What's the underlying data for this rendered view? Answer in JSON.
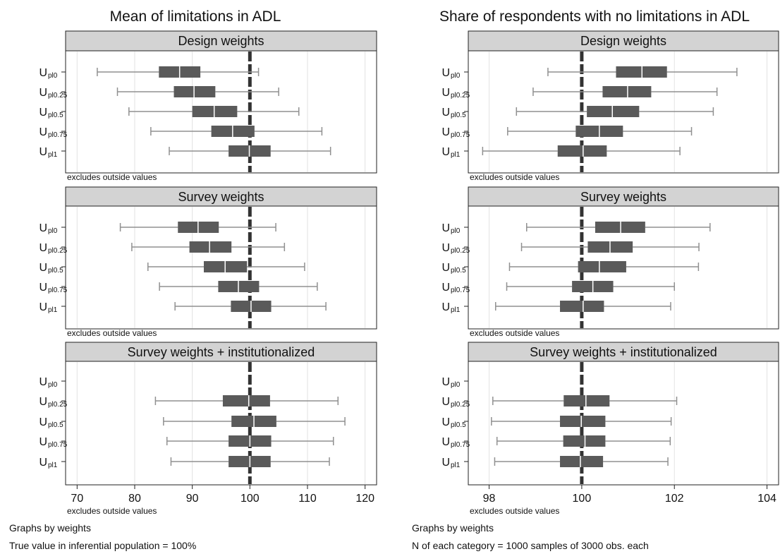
{
  "colors": {
    "box": "#5a5a5a",
    "whisker": "#909090",
    "strip": "#d3d3d3",
    "grid": "#e2e2e2",
    "reference": "#333333",
    "median": "#ffffff"
  },
  "chart_data": [
    {
      "type": "boxplot",
      "title": "Mean of limitations in ADL",
      "xlim": [
        68,
        122
      ],
      "xticks": [
        70,
        80,
        90,
        100,
        110,
        120
      ],
      "reference_line": 100,
      "categories": [
        "U_pl0",
        "U_pl0.25",
        "U_pl0.5",
        "U_pl0.75",
        "U_pl1"
      ],
      "category_labels": [
        {
          "base": "U",
          "sub": "pl0"
        },
        {
          "base": "U",
          "sub": "pl0.25"
        },
        {
          "base": "U",
          "sub": "pl0.5"
        },
        {
          "base": "U",
          "sub": "pl0.75"
        },
        {
          "base": "U",
          "sub": "pl1"
        }
      ],
      "panels": [
        {
          "name": "Design weights",
          "note": "excludes outside values",
          "boxes": [
            {
              "wlo": 73.5,
              "q1": 84.2,
              "median": 87.8,
              "q3": 91.4,
              "whi": 101.5
            },
            {
              "wlo": 77.0,
              "q1": 86.8,
              "median": 90.3,
              "q3": 94.0,
              "whi": 105.0
            },
            {
              "wlo": 79.0,
              "q1": 90.0,
              "median": 93.8,
              "q3": 97.8,
              "whi": 108.5
            },
            {
              "wlo": 82.8,
              "q1": 93.3,
              "median": 97.0,
              "q3": 100.8,
              "whi": 112.5
            },
            {
              "wlo": 86.0,
              "q1": 96.3,
              "median": 99.9,
              "q3": 103.6,
              "whi": 114.0
            }
          ]
        },
        {
          "name": "Survey weights",
          "note": "excludes outside values",
          "boxes": [
            {
              "wlo": 77.5,
              "q1": 87.5,
              "median": 91.0,
              "q3": 94.6,
              "whi": 104.5
            },
            {
              "wlo": 79.5,
              "q1": 89.5,
              "median": 93.0,
              "q3": 96.8,
              "whi": 106.0
            },
            {
              "wlo": 82.3,
              "q1": 92.0,
              "median": 95.7,
              "q3": 99.5,
              "whi": 109.5
            },
            {
              "wlo": 84.3,
              "q1": 94.5,
              "median": 98.0,
              "q3": 101.6,
              "whi": 111.7
            },
            {
              "wlo": 87.0,
              "q1": 96.7,
              "median": 100.2,
              "q3": 103.7,
              "whi": 113.2
            }
          ]
        },
        {
          "name": "Survey weights + institutionalized",
          "note": "excludes outside values",
          "boxes": [
            null,
            {
              "wlo": 83.6,
              "q1": 95.3,
              "median": 99.8,
              "q3": 103.5,
              "whi": 115.3
            },
            {
              "wlo": 85.0,
              "q1": 96.8,
              "median": 100.7,
              "q3": 104.6,
              "whi": 116.5
            },
            {
              "wlo": 85.6,
              "q1": 96.3,
              "median": 100.0,
              "q3": 103.7,
              "whi": 114.5
            },
            {
              "wlo": 86.3,
              "q1": 96.3,
              "median": 100.0,
              "q3": 103.6,
              "whi": 113.8
            }
          ]
        }
      ],
      "footnotes": [
        "Graphs by weights",
        "True value in inferential population = 100%"
      ]
    },
    {
      "type": "boxplot",
      "title": "Share of respondents with no limitations in ADL",
      "xlim": [
        97.55,
        104.25
      ],
      "xticks": [
        98,
        100,
        102,
        104
      ],
      "reference_line": 100,
      "categories": [
        "U_pl0",
        "U_pl0.25",
        "U_pl0.5",
        "U_pl0.75",
        "U_pl1"
      ],
      "category_labels": [
        {
          "base": "U",
          "sub": "pl0"
        },
        {
          "base": "U",
          "sub": "pl0.25"
        },
        {
          "base": "U",
          "sub": "pl0.5"
        },
        {
          "base": "U",
          "sub": "pl0.75"
        },
        {
          "base": "U",
          "sub": "pl1"
        }
      ],
      "panels": [
        {
          "name": "Design weights",
          "note": "excludes outside values",
          "boxes": [
            {
              "wlo": 99.27,
              "q1": 100.74,
              "median": 101.3,
              "q3": 101.84,
              "whi": 103.35
            },
            {
              "wlo": 98.95,
              "q1": 100.45,
              "median": 100.99,
              "q3": 101.5,
              "whi": 102.92
            },
            {
              "wlo": 98.59,
              "q1": 100.11,
              "median": 100.66,
              "q3": 101.24,
              "whi": 102.84
            },
            {
              "wlo": 98.4,
              "q1": 99.87,
              "median": 100.38,
              "q3": 100.89,
              "whi": 102.37
            },
            {
              "wlo": 97.86,
              "q1": 99.48,
              "median": 100.03,
              "q3": 100.54,
              "whi": 102.12
            }
          ]
        },
        {
          "name": "Survey weights",
          "note": "excludes outside values",
          "boxes": [
            {
              "wlo": 98.81,
              "q1": 100.29,
              "median": 100.84,
              "q3": 101.37,
              "whi": 102.77
            },
            {
              "wlo": 98.7,
              "q1": 100.13,
              "median": 100.61,
              "q3": 101.1,
              "whi": 102.53
            },
            {
              "wlo": 98.44,
              "q1": 99.92,
              "median": 100.38,
              "q3": 100.96,
              "whi": 102.52
            },
            {
              "wlo": 98.38,
              "q1": 99.79,
              "median": 100.24,
              "q3": 100.68,
              "whi": 102.0
            },
            {
              "wlo": 98.14,
              "q1": 99.53,
              "median": 100.03,
              "q3": 100.48,
              "whi": 101.92
            }
          ]
        },
        {
          "name": "Survey weights + institutionalized",
          "note": "excludes outside values",
          "boxes": [
            null,
            {
              "wlo": 98.08,
              "q1": 99.61,
              "median": 100.09,
              "q3": 100.6,
              "whi": 102.05
            },
            {
              "wlo": 98.05,
              "q1": 99.53,
              "median": 99.99,
              "q3": 100.51,
              "whi": 101.93
            },
            {
              "wlo": 98.17,
              "q1": 99.6,
              "median": 100.07,
              "q3": 100.51,
              "whi": 101.91
            },
            {
              "wlo": 98.12,
              "q1": 99.53,
              "median": 99.97,
              "q3": 100.46,
              "whi": 101.86
            }
          ]
        }
      ],
      "footnotes": [
        "Graphs by weights",
        "N of each category = 1000 samples of 3000 obs. each"
      ]
    }
  ]
}
